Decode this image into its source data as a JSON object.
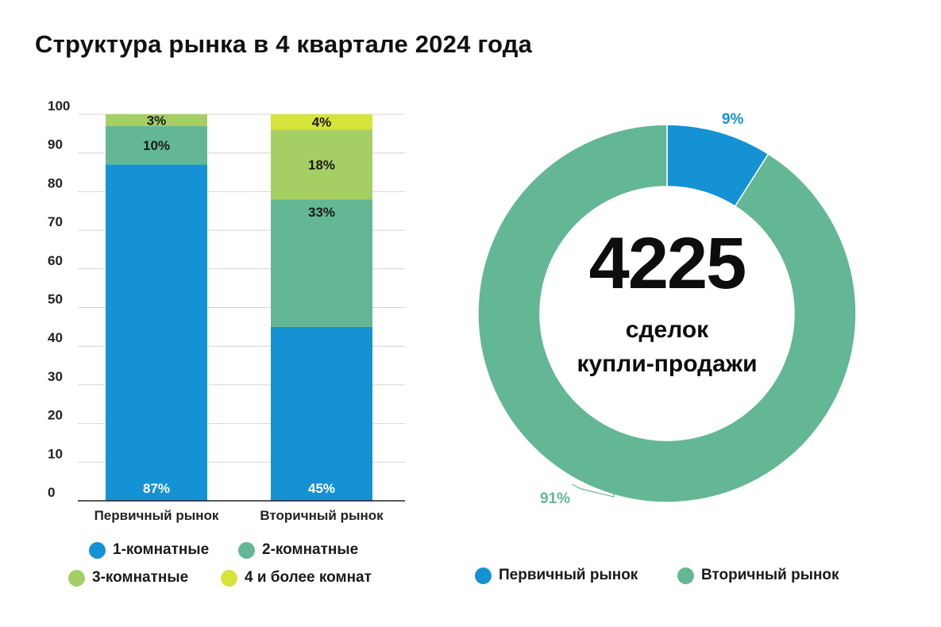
{
  "title": "Структура рынка в 4 квартале 2024 года",
  "colors": {
    "one_room": "#1592D3",
    "two_room": "#63B795",
    "three_room": "#A5CF65",
    "four_plus": "#D6E33A",
    "primary": "#1592D3",
    "secondary": "#63B795"
  },
  "chart_data": [
    {
      "type": "bar",
      "stacked": true,
      "categories": [
        "Первичный рынок",
        "Вторичный рынок"
      ],
      "y_ticks": [
        "0",
        "10",
        "20",
        "30",
        "40",
        "50",
        "60",
        "70",
        "80",
        "90",
        "100"
      ],
      "ylim": [
        0,
        100
      ],
      "grid": true,
      "legend_position": "bottom",
      "series": [
        {
          "name": "1-комнатные",
          "values": [
            87,
            45
          ],
          "labels": [
            "87%",
            "45%"
          ],
          "color": "#1592D3"
        },
        {
          "name": "2-комнатные",
          "values": [
            10,
            33
          ],
          "labels": [
            "10%",
            "33%"
          ],
          "color": "#63B795"
        },
        {
          "name": "3-комнатные",
          "values": [
            3,
            18
          ],
          "labels": [
            "3%",
            "18%"
          ],
          "color": "#A5CF65"
        },
        {
          "name": "4 и более комнат",
          "values": [
            0,
            4
          ],
          "labels": [
            "",
            "4%"
          ],
          "color": "#D6E33A"
        }
      ]
    },
    {
      "type": "pie",
      "donut": true,
      "legend_position": "bottom",
      "center_value": "4225",
      "center_label_line1": "сделок",
      "center_label_line2": "купли-продажи",
      "slices": [
        {
          "name": "Первичный рынок",
          "value": 9,
          "label": "9%",
          "color": "#1592D3"
        },
        {
          "name": "Вторичный рынок",
          "value": 91,
          "label": "91%",
          "color": "#63B795"
        }
      ]
    }
  ]
}
